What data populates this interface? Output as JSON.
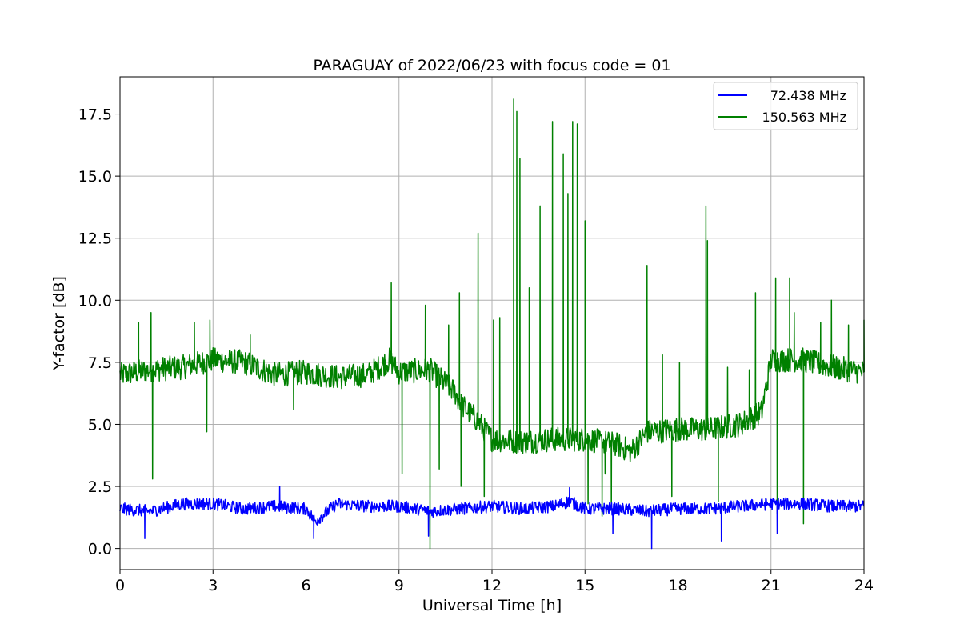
{
  "chart_data": {
    "type": "line",
    "title": "PARAGUAY of 2022/06/23 with focus code = 01",
    "xlabel": "Universal Time [h]",
    "ylabel": "Y-factor [dB]",
    "xlim": [
      0,
      24
    ],
    "ylim": [
      -0.85,
      19.0
    ],
    "xticks": [
      0,
      3,
      6,
      9,
      12,
      15,
      18,
      21,
      24
    ],
    "xtick_labels": [
      "0",
      "3",
      "6",
      "9",
      "12",
      "15",
      "18",
      "21",
      "24"
    ],
    "yticks": [
      0.0,
      2.5,
      5.0,
      7.5,
      10.0,
      12.5,
      15.0,
      17.5
    ],
    "ytick_labels": [
      "0.0",
      "2.5",
      "5.0",
      "7.5",
      "10.0",
      "12.5",
      "15.0",
      "17.5"
    ],
    "grid": true,
    "legend_position": "top-right",
    "series": [
      {
        "name": "72.438 MHz",
        "color": "#0000ff",
        "x": [
          0,
          1,
          2,
          3,
          4,
          5,
          6,
          6.3,
          7,
          8,
          9,
          10,
          11,
          12,
          13,
          14,
          14.5,
          15,
          16,
          17,
          18,
          19,
          20,
          21,
          22,
          23,
          24
        ],
        "y": [
          1.6,
          1.5,
          1.8,
          1.8,
          1.6,
          1.7,
          1.6,
          1.1,
          1.8,
          1.7,
          1.7,
          1.5,
          1.6,
          1.7,
          1.6,
          1.7,
          1.9,
          1.6,
          1.6,
          1.5,
          1.6,
          1.6,
          1.7,
          1.8,
          1.8,
          1.7,
          1.7
        ],
        "spikes": [
          {
            "x": 5.15,
            "y": 2.5
          },
          {
            "x": 14.5,
            "y": 2.45
          },
          {
            "x": 0.8,
            "y": 0.4
          },
          {
            "x": 6.25,
            "y": 0.4
          },
          {
            "x": 9.95,
            "y": 0.5
          },
          {
            "x": 15.9,
            "y": 0.6
          },
          {
            "x": 17.15,
            "y": 0.0
          },
          {
            "x": 19.4,
            "y": 0.3
          },
          {
            "x": 21.2,
            "y": 0.6
          }
        ],
        "noise": 0.25
      },
      {
        "name": "150.563 MHz",
        "color": "#008000",
        "x": [
          0,
          1,
          2,
          3,
          4,
          5,
          6,
          7,
          8,
          8.7,
          9,
          10,
          10.8,
          11,
          11.5,
          12,
          13,
          14,
          15,
          16,
          16.5,
          17,
          18,
          19,
          20,
          20.7,
          21,
          22,
          23,
          24
        ],
        "y": [
          7.0,
          7.2,
          7.3,
          7.6,
          7.5,
          7.0,
          7.1,
          6.9,
          7.0,
          7.6,
          7.1,
          7.2,
          6.3,
          5.8,
          5.2,
          4.4,
          4.3,
          4.4,
          4.4,
          4.2,
          3.9,
          4.7,
          4.8,
          4.8,
          5.0,
          5.5,
          7.6,
          7.6,
          7.3,
          7.1
        ],
        "spikes": [
          {
            "x": 0.6,
            "y": 9.1
          },
          {
            "x": 1.0,
            "y": 9.5
          },
          {
            "x": 1.05,
            "y": 2.8
          },
          {
            "x": 2.4,
            "y": 9.1
          },
          {
            "x": 2.9,
            "y": 9.2
          },
          {
            "x": 2.8,
            "y": 4.7
          },
          {
            "x": 4.2,
            "y": 8.6
          },
          {
            "x": 5.6,
            "y": 5.6
          },
          {
            "x": 8.75,
            "y": 10.7
          },
          {
            "x": 9.1,
            "y": 3.0
          },
          {
            "x": 9.85,
            "y": 9.8
          },
          {
            "x": 10.0,
            "y": 0.0
          },
          {
            "x": 10.3,
            "y": 3.2
          },
          {
            "x": 10.6,
            "y": 9.0
          },
          {
            "x": 10.95,
            "y": 10.3
          },
          {
            "x": 11.0,
            "y": 2.5
          },
          {
            "x": 11.55,
            "y": 12.7
          },
          {
            "x": 11.75,
            "y": 2.1
          },
          {
            "x": 12.05,
            "y": 9.2
          },
          {
            "x": 12.25,
            "y": 9.3
          },
          {
            "x": 12.7,
            "y": 18.1
          },
          {
            "x": 12.8,
            "y": 17.6
          },
          {
            "x": 12.9,
            "y": 15.7
          },
          {
            "x": 13.2,
            "y": 10.5
          },
          {
            "x": 13.55,
            "y": 13.8
          },
          {
            "x": 13.95,
            "y": 17.2
          },
          {
            "x": 14.3,
            "y": 15.9
          },
          {
            "x": 14.45,
            "y": 14.3
          },
          {
            "x": 14.6,
            "y": 17.2
          },
          {
            "x": 14.75,
            "y": 17.1
          },
          {
            "x": 15.0,
            "y": 13.2
          },
          {
            "x": 15.1,
            "y": 1.8
          },
          {
            "x": 15.55,
            "y": 1.3
          },
          {
            "x": 15.65,
            "y": 3.0
          },
          {
            "x": 15.85,
            "y": 1.6
          },
          {
            "x": 17.0,
            "y": 11.4
          },
          {
            "x": 17.5,
            "y": 7.8
          },
          {
            "x": 17.8,
            "y": 2.1
          },
          {
            "x": 18.05,
            "y": 7.5
          },
          {
            "x": 18.9,
            "y": 13.8
          },
          {
            "x": 18.95,
            "y": 12.4
          },
          {
            "x": 19.3,
            "y": 1.9
          },
          {
            "x": 19.6,
            "y": 7.3
          },
          {
            "x": 20.3,
            "y": 7.2
          },
          {
            "x": 20.5,
            "y": 10.3
          },
          {
            "x": 21.15,
            "y": 10.9
          },
          {
            "x": 21.2,
            "y": 1.4
          },
          {
            "x": 21.6,
            "y": 10.9
          },
          {
            "x": 21.75,
            "y": 9.5
          },
          {
            "x": 22.05,
            "y": 1.0
          },
          {
            "x": 22.6,
            "y": 9.1
          },
          {
            "x": 22.95,
            "y": 10.0
          },
          {
            "x": 23.5,
            "y": 9.0
          },
          {
            "x": 24.0,
            "y": 9.2
          }
        ],
        "noise": 0.5
      }
    ]
  }
}
